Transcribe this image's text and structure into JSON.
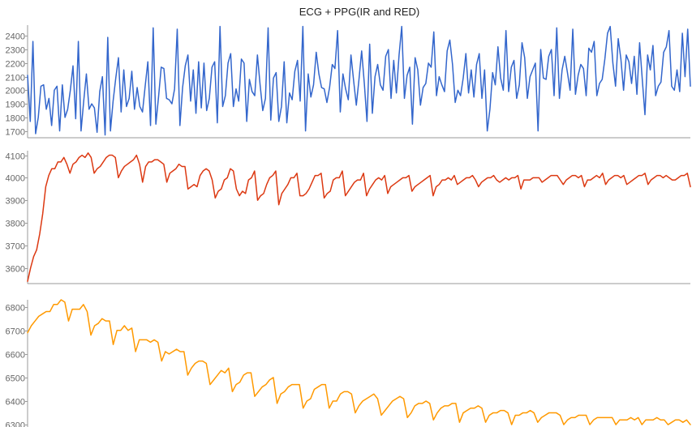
{
  "chart_data": {
    "type": "line",
    "title": "ECG + PPG(IR and RED)",
    "grid": false,
    "legend": "none",
    "panels": [
      {
        "name": "",
        "color": "#3366cc",
        "ylim": [
          1650,
          2480
        ],
        "yticks": [
          1700,
          1800,
          1900,
          2000,
          2100,
          2200,
          2300,
          2400
        ],
        "values": [
          2110,
          1770,
          2360,
          1680,
          1800,
          2030,
          2040,
          1860,
          1940,
          1740,
          2000,
          2030,
          1700,
          2040,
          1800,
          1860,
          2000,
          2180,
          1790,
          2360,
          1700,
          1920,
          2120,
          1860,
          1900,
          1870,
          1690,
          1990,
          2100,
          1670,
          2390,
          1700,
          1920,
          2090,
          2240,
          1840,
          2150,
          1880,
          1940,
          2140,
          1860,
          2020,
          1880,
          1840,
          2030,
          2210,
          1740,
          2460,
          1750,
          1950,
          2170,
          2160,
          1940,
          1930,
          1900,
          2010,
          2450,
          1740,
          2020,
          2180,
          2260,
          1920,
          2150,
          1830,
          2210,
          1870,
          2200,
          1850,
          1940,
          2170,
          2210,
          1760,
          2470,
          1880,
          1960,
          2200,
          2270,
          1880,
          2010,
          1920,
          2230,
          2200,
          1770,
          2080,
          1990,
          1960,
          2260,
          2040,
          1850,
          1940,
          2460,
          1780,
          2090,
          2130,
          1770,
          1880,
          2210,
          1760,
          1980,
          1930,
          2140,
          2220,
          1920,
          2470,
          1700,
          2120,
          1950,
          2040,
          2280,
          2120,
          2020,
          2010,
          1910,
          2020,
          2190,
          2160,
          2440,
          1840,
          2120,
          2010,
          1930,
          2260,
          2070,
          1890,
          2080,
          2290,
          2050,
          1770,
          2340,
          1830,
          2100,
          2190,
          2040,
          2000,
          2250,
          2300,
          1940,
          2220,
          1980,
          2260,
          2470,
          1940,
          2110,
          2170,
          1750,
          2240,
          2150,
          1890,
          2020,
          2050,
          2200,
          2170,
          2430,
          1960,
          2100,
          2040,
          1990,
          2290,
          2370,
          2190,
          1910,
          2000,
          1960,
          2090,
          2270,
          1980,
          2150,
          1950,
          2190,
          2270,
          1940,
          2150,
          1700,
          1860,
          2130,
          2040,
          2320,
          2090,
          2000,
          2440,
          1990,
          2170,
          2220,
          1940,
          2040,
          2350,
          2240,
          1940,
          2100,
          2150,
          2200,
          1700,
          2300,
          2090,
          2080,
          2250,
          2300,
          1960,
          2460,
          1940,
          2150,
          2250,
          2130,
          2000,
          2450,
          1970,
          2110,
          2190,
          2160,
          1960,
          2310,
          2280,
          2360,
          1960,
          2050,
          2080,
          2230,
          2420,
          2470,
          2200,
          2030,
          2380,
          2230,
          2000,
          2260,
          2210,
          2050,
          2250,
          1970,
          2350,
          2080,
          1820,
          2260,
          2150,
          2330,
          1960,
          2030,
          2060,
          2280,
          2320,
          2440,
          2030,
          2000,
          2150,
          1990,
          2420,
          2100,
          2450,
          2030
        ]
      },
      {
        "name": "",
        "color": "#dc3912",
        "ylim": [
          3530,
          4120
        ],
        "yticks": [
          3600,
          3700,
          3800,
          3900,
          4000,
          4100
        ],
        "values": [
          3540,
          3600,
          3650,
          3680,
          3750,
          3840,
          3960,
          4010,
          4040,
          4040,
          4070,
          4070,
          4090,
          4060,
          4020,
          4060,
          4070,
          4090,
          4100,
          4090,
          4110,
          4090,
          4020,
          4040,
          4050,
          4070,
          4090,
          4100,
          4100,
          4090,
          4000,
          4030,
          4050,
          4060,
          4070,
          4080,
          4100,
          4060,
          3980,
          4050,
          4070,
          4070,
          4080,
          4080,
          4070,
          4060,
          3980,
          4020,
          4030,
          4040,
          4060,
          4050,
          4050,
          3950,
          3960,
          3970,
          3960,
          4010,
          4030,
          4040,
          4030,
          3990,
          3910,
          3940,
          3950,
          3990,
          4000,
          4040,
          4030,
          3950,
          3920,
          3940,
          3930,
          3990,
          4000,
          4030,
          3900,
          3920,
          3930,
          3970,
          4000,
          4010,
          4030,
          3880,
          3930,
          3950,
          3970,
          4000,
          4000,
          4020,
          3920,
          3920,
          3930,
          3950,
          3980,
          4010,
          4010,
          4020,
          3910,
          3930,
          3940,
          3990,
          4000,
          4000,
          4030,
          3920,
          3940,
          3960,
          3980,
          3990,
          3990,
          4020,
          3920,
          3950,
          3970,
          3990,
          4000,
          3990,
          4010,
          3930,
          3960,
          3970,
          3980,
          3990,
          4000,
          4000,
          4010,
          3940,
          3960,
          3970,
          3980,
          3990,
          4000,
          4010,
          3920,
          3960,
          3970,
          3990,
          3990,
          4000,
          3990,
          4010,
          3970,
          3980,
          3990,
          4000,
          4000,
          4010,
          3990,
          3960,
          3980,
          3990,
          4000,
          4000,
          4010,
          3990,
          3980,
          3990,
          4000,
          3990,
          4000,
          4000,
          4010,
          3950,
          3990,
          3990,
          3990,
          4000,
          4000,
          4000,
          3980,
          3990,
          4000,
          4010,
          4010,
          4010,
          3990,
          3970,
          3990,
          4000,
          4010,
          4010,
          4000,
          4010,
          3960,
          3990,
          3990,
          4000,
          4010,
          4000,
          4020,
          3970,
          3990,
          4000,
          4010,
          4010,
          4000,
          4010,
          3970,
          3980,
          3990,
          4000,
          4010,
          4010,
          4020,
          3970,
          3990,
          4000,
          4010,
          4010,
          4000,
          4010,
          4000,
          3990,
          3990,
          4000,
          4010,
          4010,
          4020,
          3960
        ]
      },
      {
        "name": "",
        "color": "#ff9900",
        "ylim": [
          6290,
          6830
        ],
        "yticks": [
          6300,
          6400,
          6500,
          6600,
          6700,
          6800
        ],
        "values": [
          6690,
          6720,
          6740,
          6760,
          6770,
          6780,
          6780,
          6810,
          6810,
          6830,
          6820,
          6740,
          6790,
          6790,
          6790,
          6810,
          6780,
          6680,
          6720,
          6730,
          6750,
          6740,
          6740,
          6640,
          6700,
          6700,
          6720,
          6700,
          6710,
          6610,
          6660,
          6660,
          6660,
          6650,
          6660,
          6650,
          6570,
          6610,
          6600,
          6610,
          6620,
          6610,
          6610,
          6510,
          6540,
          6560,
          6570,
          6570,
          6560,
          6470,
          6490,
          6510,
          6530,
          6520,
          6540,
          6440,
          6470,
          6480,
          6510,
          6520,
          6520,
          6420,
          6440,
          6460,
          6470,
          6490,
          6500,
          6390,
          6430,
          6440,
          6460,
          6470,
          6470,
          6470,
          6370,
          6400,
          6410,
          6450,
          6460,
          6470,
          6470,
          6370,
          6400,
          6400,
          6430,
          6440,
          6440,
          6430,
          6350,
          6380,
          6400,
          6410,
          6420,
          6430,
          6410,
          6340,
          6360,
          6380,
          6400,
          6410,
          6420,
          6410,
          6330,
          6350,
          6380,
          6390,
          6390,
          6400,
          6390,
          6320,
          6350,
          6370,
          6380,
          6380,
          6390,
          6390,
          6310,
          6350,
          6360,
          6370,
          6370,
          6380,
          6370,
          6310,
          6340,
          6350,
          6350,
          6360,
          6360,
          6350,
          6300,
          6340,
          6340,
          6350,
          6350,
          6360,
          6350,
          6310,
          6330,
          6340,
          6350,
          6350,
          6350,
          6340,
          6300,
          6320,
          6330,
          6330,
          6340,
          6340,
          6340,
          6300,
          6320,
          6330,
          6330,
          6330,
          6330,
          6330,
          6300,
          6320,
          6320,
          6320,
          6330,
          6320,
          6330,
          6300,
          6320,
          6320,
          6320,
          6330,
          6320,
          6320,
          6300,
          6310,
          6320,
          6320,
          6310,
          6320,
          6300
        ]
      }
    ]
  }
}
